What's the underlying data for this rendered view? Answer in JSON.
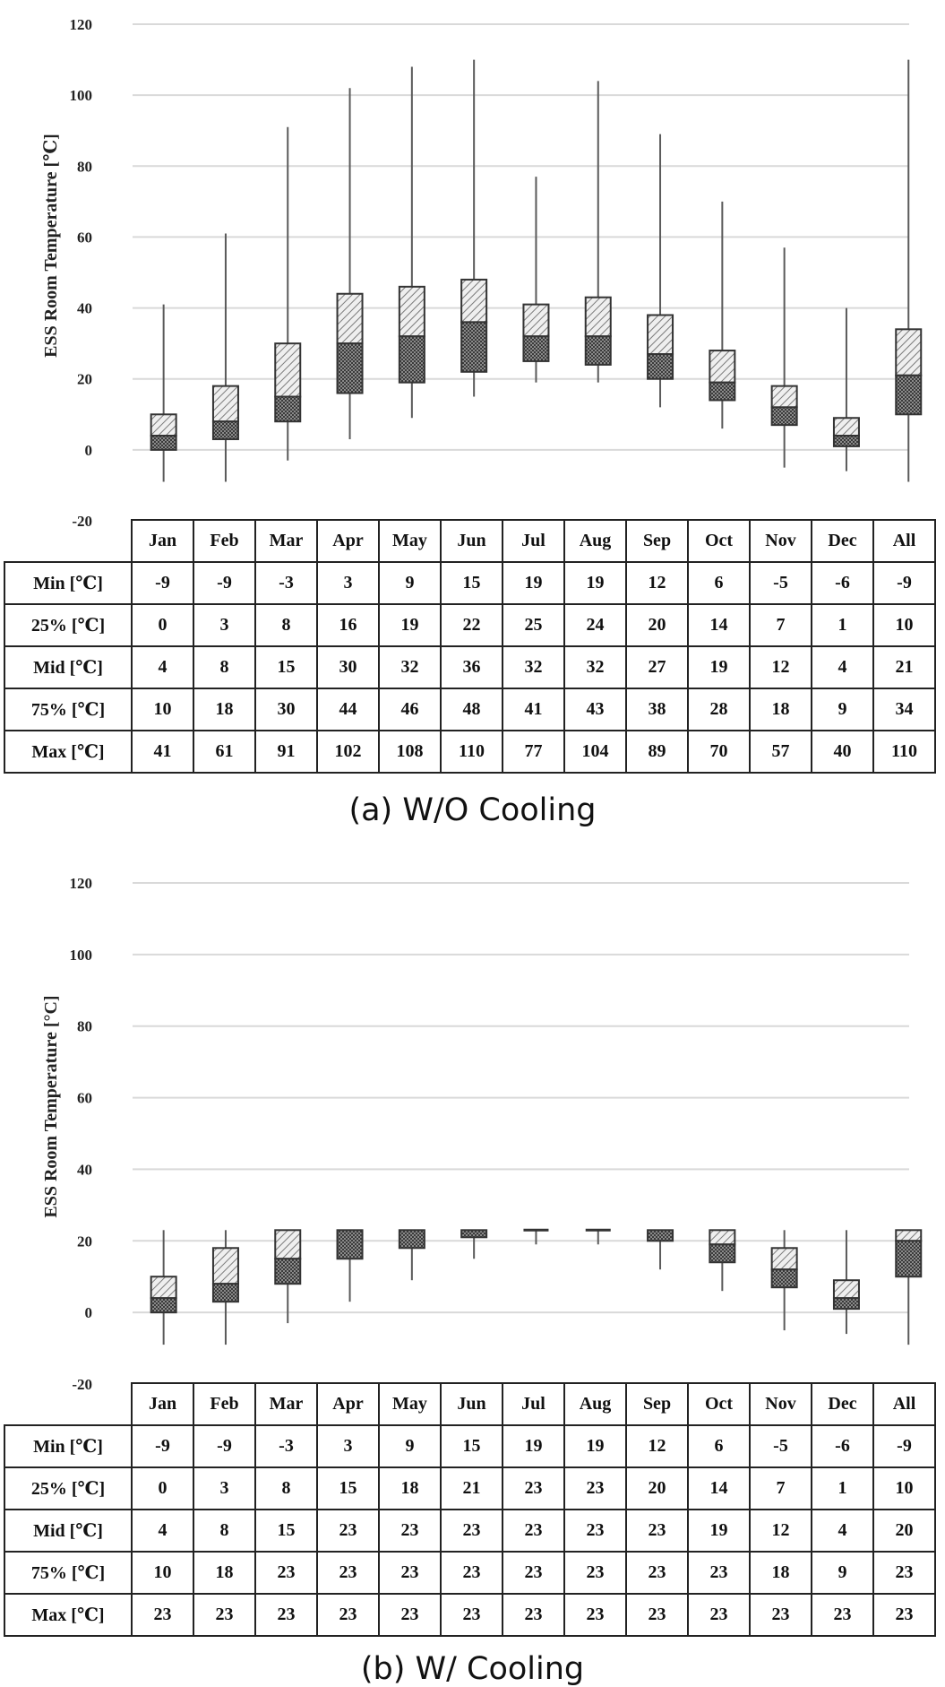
{
  "chart_data": [
    {
      "type": "boxplot",
      "caption": "(a) W/O Cooling",
      "ylabel": "ESS Room Temperature [℃]",
      "ylim": [
        -20,
        120
      ],
      "yticks": [
        "-20",
        "0",
        "20",
        "40",
        "60",
        "80",
        "100",
        "120"
      ],
      "grid": true,
      "categories": [
        "Jan",
        "Feb",
        "Mar",
        "Apr",
        "May",
        "Jun",
        "Jul",
        "Aug",
        "Sep",
        "Oct",
        "Nov",
        "Dec",
        "All"
      ],
      "row_labels": [
        "Min [℃]",
        "25% [℃]",
        "Mid [℃]",
        "75% [℃]",
        "Max [℃]"
      ],
      "min": [
        "-9",
        "-9",
        "-3",
        "3",
        "9",
        "15",
        "19",
        "19",
        "12",
        "6",
        "-5",
        "-6",
        "-9"
      ],
      "q1": [
        "0",
        "3",
        "8",
        "16",
        "19",
        "22",
        "25",
        "24",
        "20",
        "14",
        "7",
        "1",
        "10"
      ],
      "median": [
        "4",
        "8",
        "15",
        "30",
        "32",
        "36",
        "32",
        "32",
        "27",
        "19",
        "12",
        "4",
        "21"
      ],
      "q3": [
        "10",
        "18",
        "30",
        "44",
        "46",
        "48",
        "41",
        "43",
        "38",
        "28",
        "18",
        "9",
        "34"
      ],
      "max": [
        "41",
        "61",
        "91",
        "102",
        "108",
        "110",
        "77",
        "104",
        "89",
        "70",
        "57",
        "40",
        "110"
      ]
    },
    {
      "type": "boxplot",
      "caption": "(b) W/ Cooling",
      "ylabel": "ESS Room Temperature [°C]",
      "ylim": [
        -20,
        120
      ],
      "yticks": [
        "-20",
        "0",
        "20",
        "40",
        "60",
        "80",
        "100",
        "120"
      ],
      "grid": true,
      "categories": [
        "Jan",
        "Feb",
        "Mar",
        "Apr",
        "May",
        "Jun",
        "Jul",
        "Aug",
        "Sep",
        "Oct",
        "Nov",
        "Dec",
        "All"
      ],
      "row_labels": [
        "Min [℃]",
        "25% [℃]",
        "Mid [℃]",
        "75% [℃]",
        "Max [℃]"
      ],
      "min": [
        "-9",
        "-9",
        "-3",
        "3",
        "9",
        "15",
        "19",
        "19",
        "12",
        "6",
        "-5",
        "-6",
        "-9"
      ],
      "q1": [
        "0",
        "3",
        "8",
        "15",
        "18",
        "21",
        "23",
        "23",
        "20",
        "14",
        "7",
        "1",
        "10"
      ],
      "median": [
        "4",
        "8",
        "15",
        "23",
        "23",
        "23",
        "23",
        "23",
        "23",
        "19",
        "12",
        "4",
        "20"
      ],
      "q3": [
        "10",
        "18",
        "23",
        "23",
        "23",
        "23",
        "23",
        "23",
        "23",
        "23",
        "18",
        "9",
        "23"
      ],
      "max": [
        "23",
        "23",
        "23",
        "23",
        "23",
        "23",
        "23",
        "23",
        "23",
        "23",
        "23",
        "23",
        "23"
      ]
    }
  ]
}
